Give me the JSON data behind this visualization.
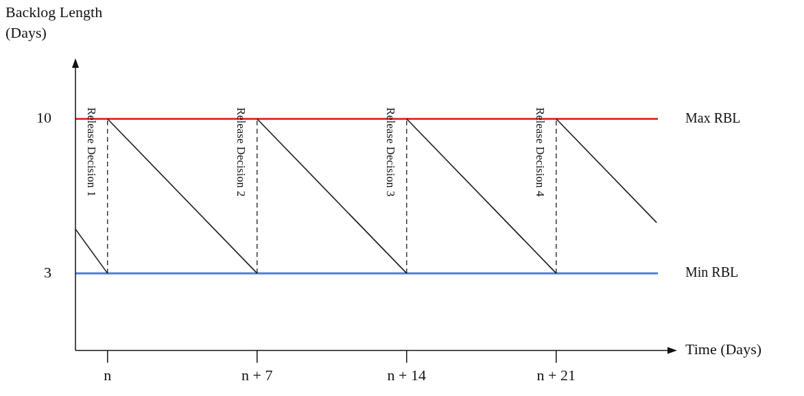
{
  "chart_data": {
    "type": "line",
    "xlabel": "Time (Days)",
    "ylabel": "Backlog Length (Days)",
    "series": [
      {
        "color": "#1a1a1a",
        "x": [
          -1.5,
          0
        ],
        "values": [
          5,
          3
        ]
      },
      {
        "color": "#1a1a1a",
        "x": [
          0,
          7
        ],
        "values": [
          10,
          3
        ]
      },
      {
        "color": "#1a1a1a",
        "x": [
          7,
          14
        ],
        "values": [
          10,
          3
        ]
      },
      {
        "color": "#1a1a1a",
        "x": [
          14,
          21
        ],
        "values": [
          10,
          3
        ]
      },
      {
        "color": "#1a1a1a",
        "x": [
          21,
          25.7
        ],
        "values": [
          10,
          5.3
        ]
      },
      {
        "color": "#1a1a1a",
        "x": [
          0,
          0
        ],
        "values": [
          3,
          10
        ],
        "line_style": "dashed"
      },
      {
        "color": "#1a1a1a",
        "x": [
          7,
          7
        ],
        "values": [
          3,
          10
        ],
        "line_style": "dashed"
      },
      {
        "color": "#1a1a1a",
        "x": [
          14,
          14
        ],
        "values": [
          3,
          10
        ],
        "line_style": "dashed"
      },
      {
        "color": "#1a1a1a",
        "x": [
          21,
          21
        ],
        "values": [
          3,
          10
        ],
        "line_style": "dashed"
      }
    ],
    "annotations": [
      {
        "text": "Release Decision 1",
        "x": 0,
        "y": 8.5
      },
      {
        "text": "Release Decision 2",
        "x": 7,
        "y": 8.5
      },
      {
        "text": "Release Decision 3",
        "x": 14,
        "y": 8.5
      },
      {
        "text": "Release Decision 4",
        "x": 21,
        "y": 8.5
      }
    ],
    "xlim": [
      -1.5,
      26.4
    ],
    "ylim": [
      -0.5,
      12.5
    ],
    "xticks": [
      {
        "value": 0,
        "label": "n"
      },
      {
        "value": 7,
        "label": "n + 7"
      },
      {
        "value": 14,
        "label": "n + 14"
      },
      {
        "value": 21,
        "label": "n + 21"
      }
    ],
    "yticks": [
      3,
      10
    ],
    "ref_lines": [
      {
        "axis": "y",
        "value": 10,
        "label": "Max RBL",
        "color": "#e0392b"
      },
      {
        "axis": "y",
        "value": 3,
        "label": "Min RBL",
        "color": "#4a80d8"
      }
    ],
    "grid": false,
    "legend": false,
    "marker": "none",
    "line_style": "solid"
  }
}
